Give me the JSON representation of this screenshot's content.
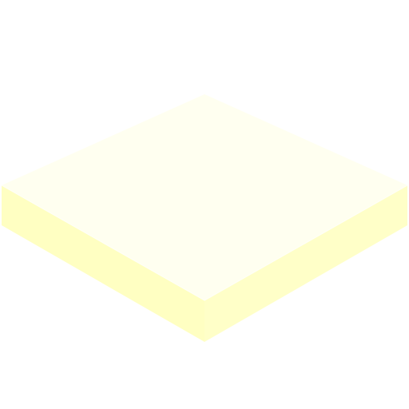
{
  "icon": {
    "name": "sticky-note-pad",
    "colors": {
      "background": "#ffffff",
      "top_face": "#fffff0",
      "left_face": "#ffffc2",
      "right_face": "#ffffc8",
      "edge": "#fffff8"
    }
  }
}
